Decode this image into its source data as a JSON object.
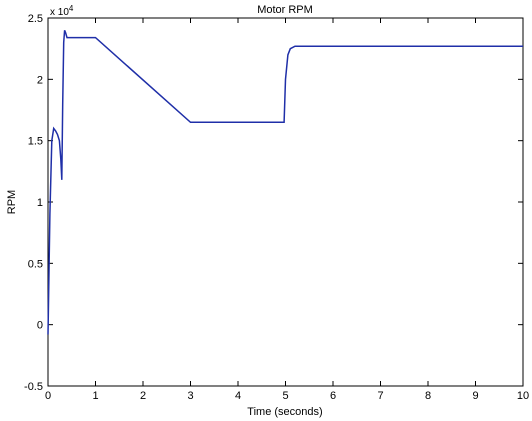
{
  "chart_data": {
    "type": "line",
    "title": "Motor RPM",
    "xlabel": "Time (seconds)",
    "ylabel": "RPM",
    "y_multiplier_base": "x 10",
    "y_multiplier_exponent": "4",
    "xlim": [
      0,
      10
    ],
    "ylim": [
      -0.5,
      2.5
    ],
    "x_ticks": [
      "0",
      "1",
      "2",
      "3",
      "4",
      "5",
      "6",
      "7",
      "8",
      "9",
      "10"
    ],
    "y_ticks": [
      "-0.5",
      "0",
      "0.5",
      "1",
      "1.5",
      "2",
      "2.5"
    ],
    "grid": false,
    "series": [
      {
        "color": "#1f2fa8",
        "x": [
          0,
          0.04,
          0.08,
          0.12,
          0.16,
          0.2,
          0.24,
          0.27,
          0.29,
          0.31,
          0.33,
          0.35,
          0.37,
          0.4,
          0.45,
          0.5,
          1.0,
          3.0,
          4.97,
          5.0,
          5.05,
          5.1,
          5.2,
          5.4,
          6,
          7,
          8,
          9,
          10
        ],
        "y": [
          -0.08,
          0.9,
          1.5,
          1.6,
          1.58,
          1.55,
          1.5,
          1.35,
          1.18,
          1.8,
          2.3,
          2.4,
          2.38,
          2.34,
          2.34,
          2.34,
          2.34,
          1.65,
          1.65,
          2.0,
          2.2,
          2.25,
          2.27,
          2.27,
          2.27,
          2.27,
          2.27,
          2.27,
          2.27
        ]
      }
    ]
  }
}
